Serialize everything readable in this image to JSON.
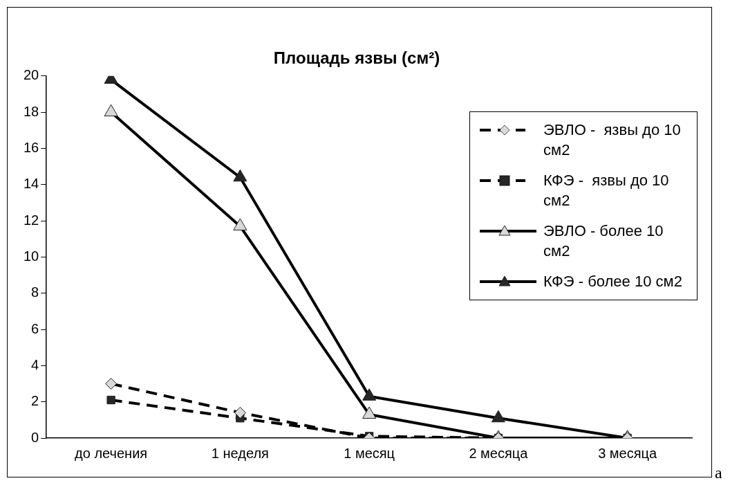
{
  "chart_data": {
    "type": "line",
    "title": "Площадь язвы (см²)",
    "categories": [
      "до лечения",
      "1 неделя",
      "1 месяц",
      "2 месяца",
      "3 месяца"
    ],
    "series": [
      {
        "name": "ЭВЛО -  язвы до 10 см2",
        "color": "#d9d9d9",
        "marker": "diamond",
        "line_style": "dashed",
        "values": [
          3.0,
          1.4,
          0,
          0,
          0
        ]
      },
      {
        "name": "КФЭ -  язвы до 10 см2",
        "color": "#262626",
        "marker": "square",
        "line_style": "dashed",
        "values": [
          2.1,
          1.1,
          0.1,
          0,
          0
        ]
      },
      {
        "name": "ЭВЛО - более 10 см2",
        "color": "#d9d9d9",
        "marker": "triangle",
        "line_style": "solid",
        "values": [
          18.0,
          11.7,
          1.3,
          0,
          0
        ]
      },
      {
        "name": "КФЭ - более 10 см2",
        "color": "#262626",
        "marker": "triangle",
        "line_style": "solid",
        "values": [
          19.8,
          14.4,
          2.3,
          1.1,
          0
        ]
      }
    ],
    "ylim": [
      0,
      20
    ],
    "yticks": [
      0,
      2,
      4,
      6,
      8,
      10,
      12,
      14,
      16,
      18,
      20
    ],
    "grid": false,
    "legend": "top right",
    "annotations": [
      "a"
    ]
  }
}
